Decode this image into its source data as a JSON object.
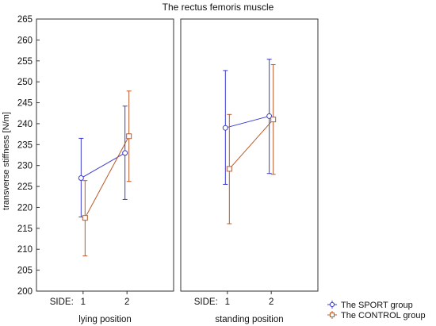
{
  "chart_data": {
    "type": "line",
    "title": "The rectus femoris muscle",
    "ylabel": "transverse stiffness [N/m]",
    "ylim": [
      200,
      265
    ],
    "yticks": [
      200,
      205,
      210,
      215,
      220,
      225,
      230,
      235,
      240,
      245,
      250,
      255,
      260,
      265
    ],
    "grid": false,
    "legend_position": "bottom-right",
    "x_axis_title": "SIDE:",
    "categories": [
      "1",
      "2"
    ],
    "panels": [
      {
        "label": "lying position",
        "series": [
          {
            "name": "The SPORT group",
            "color": "#3a3ad0",
            "marker": "circle",
            "values": [
              227.0,
              233.0
            ],
            "lower": [
              217.7,
              221.9
            ],
            "upper": [
              236.5,
              244.2
            ]
          },
          {
            "name": "The CONTROL group",
            "color": "#b85a2a",
            "marker": "square",
            "values": [
              217.5,
              237.0
            ],
            "lower": [
              208.4,
              226.2
            ],
            "upper": [
              226.4,
              247.8
            ]
          }
        ]
      },
      {
        "label": "standing position",
        "series": [
          {
            "name": "The SPORT group",
            "color": "#3a3ad0",
            "marker": "circle",
            "values": [
              239.0,
              241.8
            ],
            "lower": [
              225.5,
              228.1
            ],
            "upper": [
              252.7,
              255.4
            ]
          },
          {
            "name": "The CONTROL group",
            "color": "#b85a2a",
            "marker": "square",
            "values": [
              229.2,
              241.0
            ],
            "lower": [
              216.1,
              227.9
            ],
            "upper": [
              242.2,
              254.1
            ]
          }
        ]
      }
    ],
    "legend": [
      "The SPORT group",
      "The CONTROL group"
    ]
  }
}
